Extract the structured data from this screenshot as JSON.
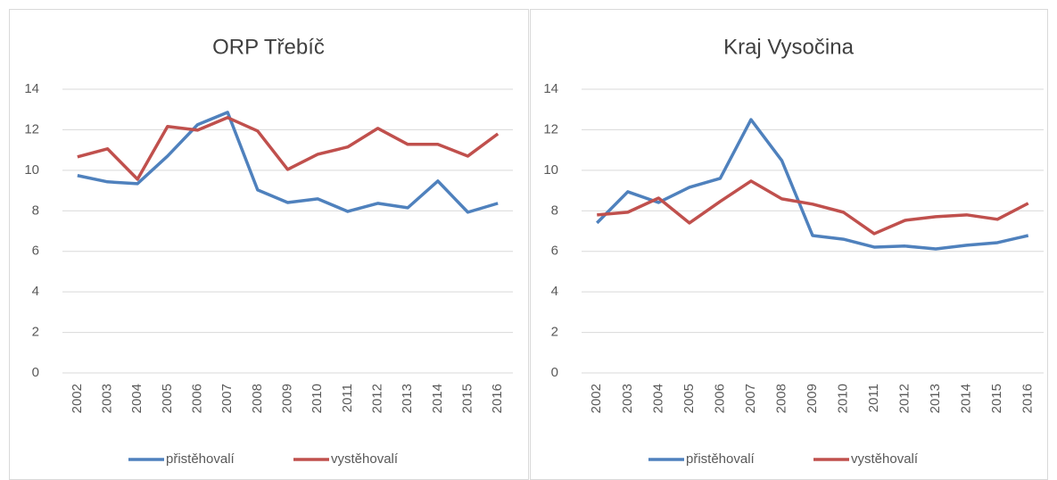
{
  "chart_data": [
    {
      "type": "line",
      "title": "ORP Třebíč",
      "categories": [
        "2002",
        "2003",
        "2004",
        "2005",
        "2006",
        "2007",
        "2008",
        "2009",
        "2010",
        "2011",
        "2012",
        "2013",
        "2014",
        "2015",
        "2016"
      ],
      "series": [
        {
          "name": "přistěhovalí",
          "color": "#4f81bd",
          "values": [
            9.74,
            9.43,
            9.34,
            10.7,
            12.25,
            12.86,
            9.03,
            8.41,
            8.59,
            7.97,
            8.37,
            8.15,
            9.47,
            7.93,
            8.37
          ]
        },
        {
          "name": "vystěhovalí",
          "color": "#c0504d",
          "values": [
            10.66,
            11.06,
            9.56,
            12.16,
            11.98,
            12.6,
            11.94,
            10.04,
            10.79,
            11.15,
            12.07,
            11.28,
            11.28,
            10.7,
            11.8
          ]
        }
      ],
      "ylim": [
        0,
        14
      ],
      "yticks": [
        0,
        2,
        4,
        6,
        8,
        10,
        12,
        14
      ],
      "grid": true,
      "legend": "bottom"
    },
    {
      "type": "line",
      "title": "Kraj Vysočina",
      "categories": [
        "2002",
        "2003",
        "2004",
        "2005",
        "2006",
        "2007",
        "2008",
        "2009",
        "2010",
        "2011",
        "2012",
        "2013",
        "2014",
        "2015",
        "2016"
      ],
      "series": [
        {
          "name": "přistěhovalí",
          "color": "#4f81bd",
          "values": [
            7.4,
            8.94,
            8.41,
            9.16,
            9.6,
            12.5,
            10.48,
            6.78,
            6.6,
            6.21,
            6.26,
            6.12,
            6.3,
            6.43,
            6.78
          ]
        },
        {
          "name": "vystěhovalí",
          "color": "#c0504d",
          "values": [
            7.8,
            7.93,
            8.63,
            7.4,
            8.46,
            9.47,
            8.59,
            8.33,
            7.93,
            6.87,
            7.53,
            7.71,
            7.8,
            7.58,
            8.37
          ]
        }
      ],
      "ylim": [
        0,
        14
      ],
      "yticks": [
        0,
        2,
        4,
        6,
        8,
        10,
        12,
        14
      ],
      "grid": true,
      "legend": "bottom"
    }
  ]
}
